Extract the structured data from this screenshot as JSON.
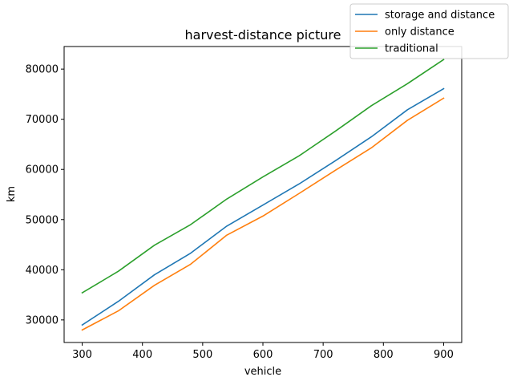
{
  "chart_data": {
    "type": "line",
    "title": "harvest-distance picture",
    "xlabel": "vehicle",
    "ylabel": "km",
    "xlim": [
      270,
      930
    ],
    "ylim": [
      25500,
      84500
    ],
    "xticks": [
      300,
      400,
      500,
      600,
      700,
      800,
      900
    ],
    "yticks": [
      30000,
      40000,
      50000,
      60000,
      70000,
      80000
    ],
    "grid": false,
    "legend_position": "top-right",
    "x": [
      300,
      360,
      420,
      480,
      540,
      600,
      660,
      720,
      780,
      840,
      900
    ],
    "series": [
      {
        "name": "storage and distance",
        "color": "#1f77b4",
        "values": [
          29000,
          33700,
          39000,
          43300,
          48700,
          52900,
          57100,
          61700,
          66500,
          71900,
          76100
        ]
      },
      {
        "name": "only distance",
        "color": "#ff7f0e",
        "values": [
          28000,
          31800,
          36900,
          41100,
          46900,
          50700,
          55200,
          59800,
          64300,
          69800,
          74200
        ]
      },
      {
        "name": "traditional",
        "color": "#2ca02c",
        "values": [
          35400,
          39700,
          44900,
          49000,
          54100,
          58500,
          62700,
          67600,
          72700,
          77100,
          81900
        ]
      }
    ]
  }
}
